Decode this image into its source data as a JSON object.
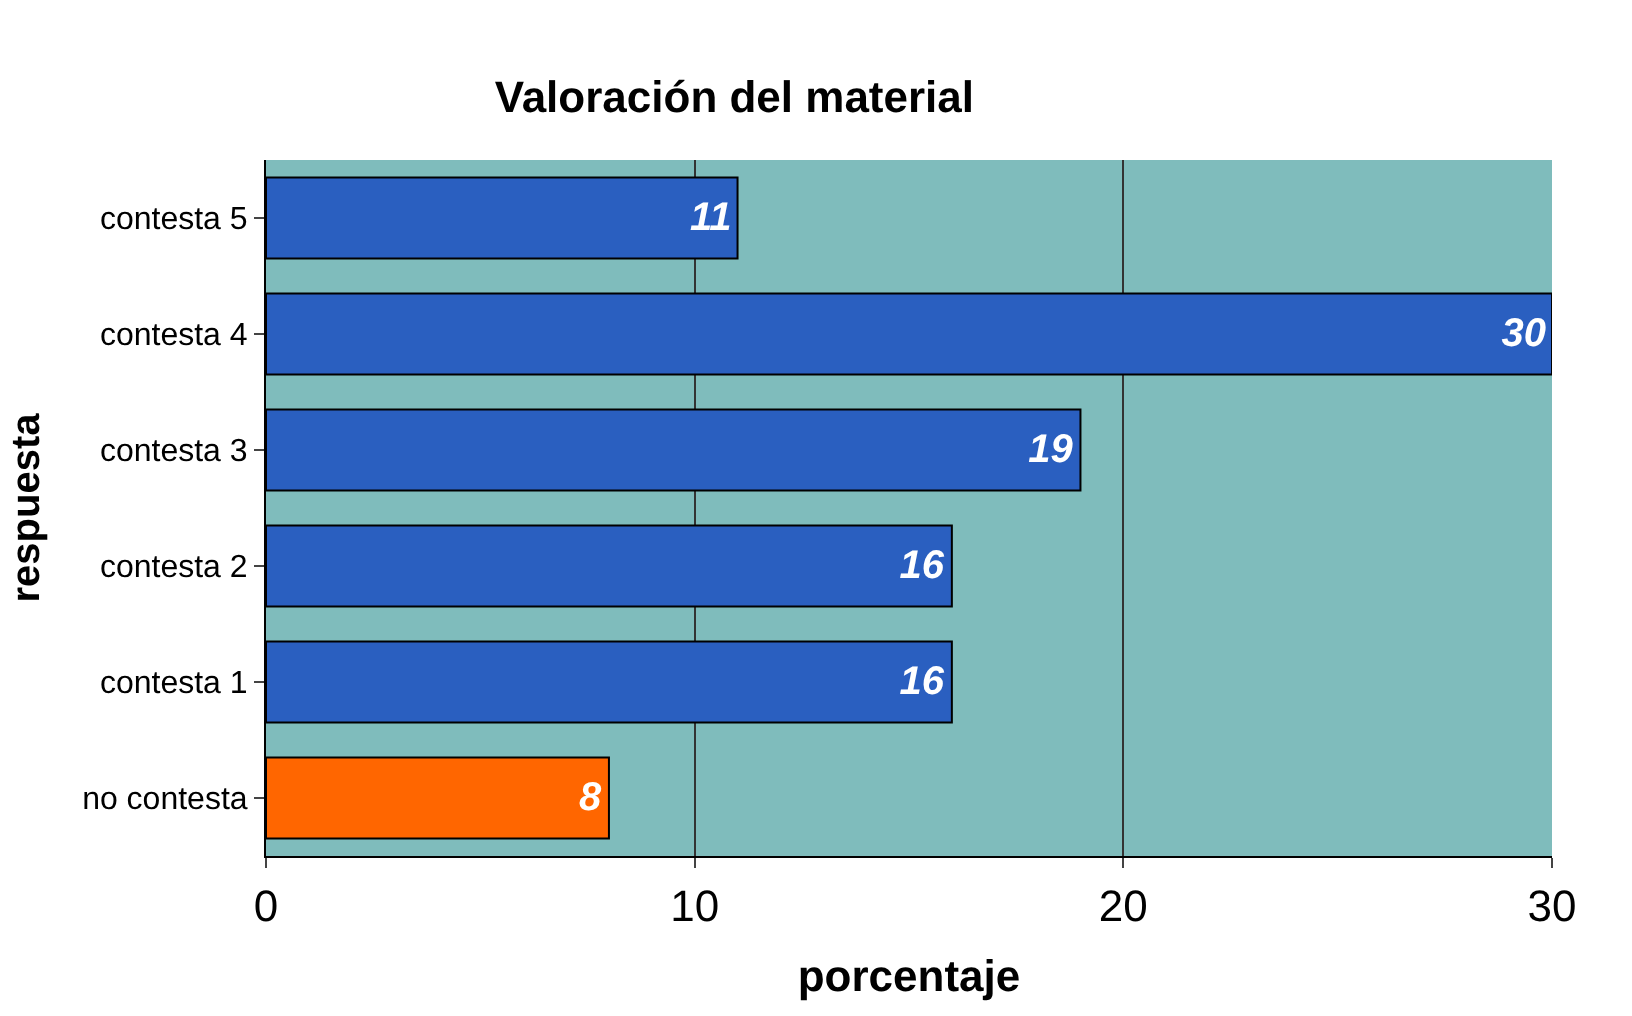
{
  "chart_data": {
    "type": "bar",
    "orientation": "horizontal",
    "title": "Valoración del material",
    "xlabel": "porcentaje",
    "ylabel": "respuesta",
    "categories": [
      "contesta 5",
      "contesta 4",
      "contesta 3",
      "contesta 2",
      "contesta 1",
      "no contesta"
    ],
    "values": [
      11,
      30,
      19,
      16,
      16,
      8
    ],
    "colors": [
      "#2a5fc0",
      "#2a5fc0",
      "#2a5fc0",
      "#2a5fc0",
      "#2a5fc0",
      "#ff6600"
    ],
    "xlim": [
      0,
      30
    ],
    "xticks": [
      0,
      10,
      20,
      30
    ],
    "grid": "x",
    "data_labels": true
  }
}
